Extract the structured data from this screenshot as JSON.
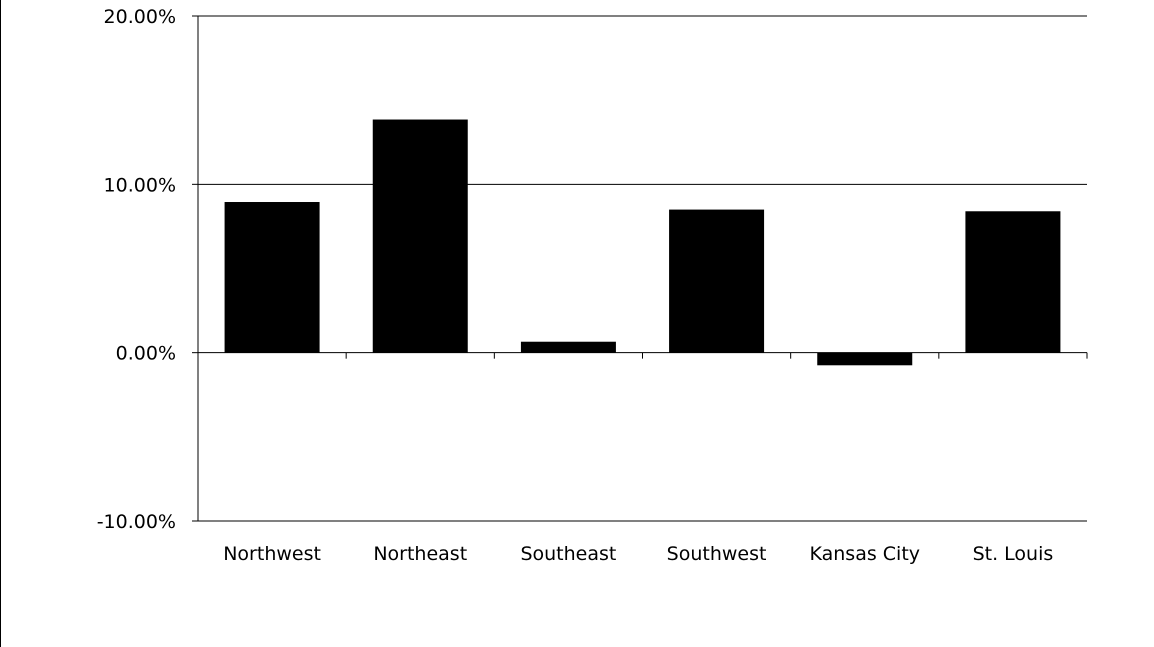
{
  "chart_data": {
    "type": "bar",
    "title": "",
    "xlabel": "",
    "ylabel": "",
    "categories": [
      "Northwest",
      "Northeast",
      "Southeast",
      "Southwest",
      "Kansas City",
      "St. Louis"
    ],
    "values": [
      8.95,
      13.85,
      0.65,
      8.5,
      -0.75,
      8.4
    ],
    "value_format": "percent",
    "ylim": [
      -10,
      20
    ],
    "yticks": [
      -10,
      0,
      10,
      20
    ],
    "ytick_labels": [
      "-10.00%",
      "0.00%",
      "10.00%",
      "20.00%"
    ],
    "grid": true,
    "legend": "none",
    "colors": {
      "bar": "#000000",
      "gridline": "#000000",
      "background": "#ffffff"
    }
  }
}
